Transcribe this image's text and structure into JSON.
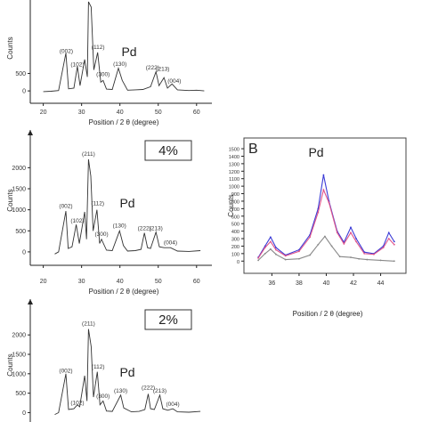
{
  "chart_data": [
    {
      "type": "line",
      "panel": "top",
      "xlabel": "Position / 2 θ (degree)",
      "ylabel": "Counts",
      "x_ticks": [
        20,
        30,
        40,
        50,
        60
      ],
      "y_ticks": [
        0,
        500
      ],
      "xlim": [
        18,
        64
      ],
      "ylim": [
        -150,
        2600
      ],
      "peak_labels": [
        {
          "text": "(002)",
          "x": 26.0,
          "y": 1080
        },
        {
          "text": "(102)",
          "x": 28.9,
          "y": 700
        },
        {
          "text": "(112)",
          "x": 34.3,
          "y": 1200
        },
        {
          "text": "(300)",
          "x": 35.6,
          "y": 420
        },
        {
          "text": "(130)",
          "x": 40.0,
          "y": 720
        },
        {
          "text": "(222)",
          "x": 48.5,
          "y": 620
        },
        {
          "text": "(213)",
          "x": 51.2,
          "y": 570
        },
        {
          "text": "(004)",
          "x": 54.2,
          "y": 230
        }
      ],
      "element_label": "Pd",
      "series": [
        {
          "values": [
            [
              20,
              -20
            ],
            [
              22,
              -10
            ],
            [
              24,
              10
            ],
            [
              25.9,
              1080
            ],
            [
              26.6,
              60
            ],
            [
              28,
              80
            ],
            [
              28.9,
              700
            ],
            [
              29.6,
              150
            ],
            [
              30.8,
              900
            ],
            [
              31.5,
              400
            ],
            [
              31.8,
              2550
            ],
            [
              32.5,
              2400
            ],
            [
              33.2,
              600
            ],
            [
              34.2,
              1100
            ],
            [
              35,
              250
            ],
            [
              35.6,
              300
            ],
            [
              36.5,
              50
            ],
            [
              38,
              40
            ],
            [
              39.6,
              650
            ],
            [
              40.6,
              300
            ],
            [
              42,
              20
            ],
            [
              44,
              30
            ],
            [
              46,
              40
            ],
            [
              48,
              120
            ],
            [
              49.4,
              550
            ],
            [
              50.2,
              150
            ],
            [
              51.5,
              380
            ],
            [
              52.4,
              80
            ],
            [
              53.6,
              200
            ],
            [
              55,
              30
            ],
            [
              58,
              10
            ],
            [
              60,
              20
            ],
            [
              62,
              0
            ]
          ]
        }
      ]
    },
    {
      "type": "line",
      "panel": "middle-left",
      "legend_box": "4%",
      "xlabel": "Position / 2 θ (degree)",
      "ylabel": "Counts",
      "x_ticks": [
        20,
        30,
        40,
        50,
        60
      ],
      "y_ticks": [
        0,
        500,
        1000,
        1500,
        2000
      ],
      "xlim": [
        18,
        64
      ],
      "ylim": [
        -150,
        2600
      ],
      "peak_labels": [
        {
          "text": "(211)",
          "x": 31.8,
          "y": 2280
        },
        {
          "text": "(002)",
          "x": 25.9,
          "y": 1050
        },
        {
          "text": "(102)",
          "x": 28.9,
          "y": 700
        },
        {
          "text": "(112)",
          "x": 34.2,
          "y": 1110
        },
        {
          "text": "(300)",
          "x": 35.2,
          "y": 380
        },
        {
          "text": "(130)",
          "x": 39.9,
          "y": 580
        },
        {
          "text": "(222)",
          "x": 46.4,
          "y": 520
        },
        {
          "text": "(213)",
          "x": 49.4,
          "y": 520
        },
        {
          "text": "(004)",
          "x": 53.2,
          "y": 180
        }
      ],
      "element_label": "Pd",
      "series": [
        {
          "values": [
            [
              23,
              -50
            ],
            [
              24,
              0
            ],
            [
              25.9,
              970
            ],
            [
              26.5,
              80
            ],
            [
              27.5,
              120
            ],
            [
              28.6,
              650
            ],
            [
              29.4,
              200
            ],
            [
              30.8,
              950
            ],
            [
              31.3,
              300
            ],
            [
              31.8,
              2200
            ],
            [
              32.4,
              1800
            ],
            [
              33,
              500
            ],
            [
              34,
              1000
            ],
            [
              34.7,
              200
            ],
            [
              35.2,
              300
            ],
            [
              36.5,
              40
            ],
            [
              38,
              30
            ],
            [
              39.9,
              500
            ],
            [
              40.9,
              150
            ],
            [
              42,
              20
            ],
            [
              44,
              30
            ],
            [
              45.5,
              60
            ],
            [
              46.4,
              450
            ],
            [
              47.2,
              100
            ],
            [
              48,
              80
            ],
            [
              49.4,
              470
            ],
            [
              50.3,
              120
            ],
            [
              51.5,
              100
            ],
            [
              53.2,
              100
            ],
            [
              55,
              20
            ],
            [
              58,
              10
            ],
            [
              61,
              30
            ]
          ]
        }
      ]
    },
    {
      "type": "line",
      "panel": "bottom-left",
      "legend_box": "2%",
      "xlabel": "",
      "ylabel": "Counts",
      "x_ticks": [],
      "y_ticks": [
        0,
        500,
        1000,
        1500,
        2000
      ],
      "xlim": [
        18,
        64
      ],
      "ylim": [
        -150,
        2600
      ],
      "peak_labels": [
        {
          "text": "(211)",
          "x": 31.8,
          "y": 2250
        },
        {
          "text": "(002)",
          "x": 25.9,
          "y": 1030
        },
        {
          "text": "(102)",
          "x": 28.9,
          "y": 200
        },
        {
          "text": "(112)",
          "x": 34.3,
          "y": 1130
        },
        {
          "text": "(300)",
          "x": 35.6,
          "y": 380
        },
        {
          "text": "(130)",
          "x": 40.2,
          "y": 520
        },
        {
          "text": "(222)",
          "x": 47.4,
          "y": 600
        },
        {
          "text": "(213)",
          "x": 50.4,
          "y": 520
        },
        {
          "text": "(004)",
          "x": 53.8,
          "y": 170
        }
      ],
      "element_label": "Pd",
      "series": [
        {
          "values": [
            [
              23,
              -50
            ],
            [
              24,
              0
            ],
            [
              25.9,
              1000
            ],
            [
              26.6,
              80
            ],
            [
              28,
              100
            ],
            [
              28.9,
              200
            ],
            [
              29.5,
              150
            ],
            [
              30.8,
              950
            ],
            [
              31.4,
              300
            ],
            [
              31.8,
              2150
            ],
            [
              32.5,
              1700
            ],
            [
              33.1,
              400
            ],
            [
              34.1,
              1050
            ],
            [
              34.8,
              200
            ],
            [
              35.6,
              300
            ],
            [
              36.5,
              40
            ],
            [
              38,
              30
            ],
            [
              40.2,
              450
            ],
            [
              41,
              120
            ],
            [
              43,
              20
            ],
            [
              45,
              30
            ],
            [
              46.5,
              80
            ],
            [
              47.4,
              480
            ],
            [
              48,
              100
            ],
            [
              49,
              80
            ],
            [
              50.4,
              450
            ],
            [
              51.2,
              100
            ],
            [
              52.5,
              60
            ],
            [
              53.8,
              100
            ],
            [
              55,
              20
            ],
            [
              58,
              10
            ],
            [
              61,
              30
            ]
          ]
        }
      ]
    },
    {
      "type": "line",
      "panel": "B",
      "panel_label": "B",
      "element_label": "Pd",
      "xlabel": "Position / 2 θ (degree)",
      "ylabel": "Counts",
      "x_ticks": [
        36,
        38,
        40,
        42,
        44
      ],
      "y_ticks": [
        0,
        100,
        200,
        300,
        400,
        500,
        600,
        700,
        800,
        900,
        1000,
        1100,
        1200,
        1300,
        1400,
        1500
      ],
      "xlim": [
        34.6,
        45.6
      ],
      "ylim": [
        -80,
        1560
      ],
      "series": [
        {
          "color": "#3b3bd6",
          "values": [
            [
              35,
              50
            ],
            [
              35.5,
              200
            ],
            [
              35.9,
              320
            ],
            [
              36.3,
              180
            ],
            [
              37,
              80
            ],
            [
              38,
              150
            ],
            [
              38.8,
              350
            ],
            [
              39.4,
              700
            ],
            [
              39.8,
              1150
            ],
            [
              40.2,
              800
            ],
            [
              40.8,
              400
            ],
            [
              41.3,
              250
            ],
            [
              41.8,
              450
            ],
            [
              42.2,
              300
            ],
            [
              42.8,
              120
            ],
            [
              43.5,
              100
            ],
            [
              44.2,
              200
            ],
            [
              44.6,
              380
            ],
            [
              45,
              260
            ]
          ]
        },
        {
          "color": "#e0548a",
          "values": [
            [
              35,
              40
            ],
            [
              35.5,
              180
            ],
            [
              35.9,
              260
            ],
            [
              36.3,
              150
            ],
            [
              37,
              70
            ],
            [
              38,
              130
            ],
            [
              38.8,
              320
            ],
            [
              39.4,
              650
            ],
            [
              39.8,
              950
            ],
            [
              40.2,
              780
            ],
            [
              40.8,
              380
            ],
            [
              41.3,
              230
            ],
            [
              41.8,
              380
            ],
            [
              42.2,
              260
            ],
            [
              42.8,
              100
            ],
            [
              43.5,
              90
            ],
            [
              44.2,
              180
            ],
            [
              44.6,
              300
            ],
            [
              45,
              220
            ]
          ]
        },
        {
          "color": "#888888",
          "values": [
            [
              35,
              10
            ],
            [
              35.5,
              100
            ],
            [
              35.9,
              160
            ],
            [
              36.3,
              90
            ],
            [
              37,
              20
            ],
            [
              38,
              30
            ],
            [
              38.8,
              80
            ],
            [
              39.4,
              220
            ],
            [
              39.9,
              330
            ],
            [
              40.4,
              200
            ],
            [
              41,
              60
            ],
            [
              41.8,
              50
            ],
            [
              42.4,
              30
            ],
            [
              43,
              20
            ],
            [
              44,
              10
            ],
            [
              45,
              0
            ]
          ]
        }
      ]
    }
  ]
}
